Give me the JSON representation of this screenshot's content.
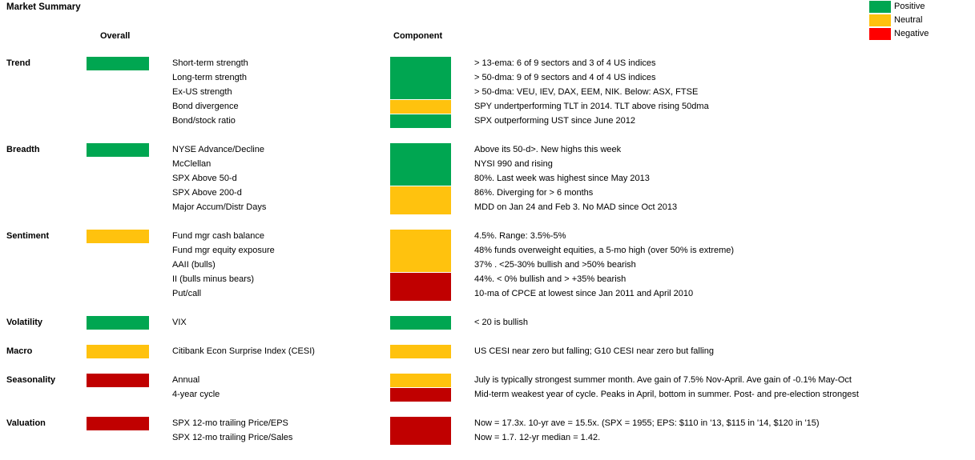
{
  "title": "Market Summary",
  "headers": {
    "overall": "Overall",
    "component": "Component"
  },
  "legend": [
    {
      "label": "Positive",
      "color": "#00A651"
    },
    {
      "label": "Neutral",
      "color": "#FFC20E"
    },
    {
      "label": "Negative",
      "color": "#FF0000"
    }
  ],
  "status_colors": {
    "positive": "#00A651",
    "neutral": "#FFC20E",
    "negative": "#C00000"
  },
  "categories": [
    {
      "name": "Trend",
      "overall": "positive",
      "rows": [
        {
          "label": "Short-term strength",
          "status": "positive",
          "detail": "> 13-ema: 6 of 9 sectors and 3 of 4 US indices"
        },
        {
          "label": "Long-term strength",
          "status": "positive",
          "detail": "> 50-dma: 9 of 9 sectors and 4 of 4 US indices"
        },
        {
          "label": "Ex-US strength",
          "status": "positive",
          "detail": "> 50-dma: VEU, IEV, DAX, EEM, NIK. Below: ASX, FTSE"
        },
        {
          "label": "Bond divergence",
          "status": "neutral",
          "detail": "SPY undertperforming TLT in 2014. TLT above rising 50dma"
        },
        {
          "label": "Bond/stock ratio",
          "status": "positive",
          "detail": "SPX outperforming UST since June 2012"
        }
      ]
    },
    {
      "name": "Breadth",
      "overall": "positive",
      "rows": [
        {
          "label": "NYSE Advance/Decline",
          "status": "positive",
          "detail": "Above its 50-d>. New highs this week"
        },
        {
          "label": "McClellan",
          "status": "positive",
          "detail": "NYSI 990 and rising"
        },
        {
          "label": "SPX Above 50-d",
          "status": "positive",
          "detail": "80%. Last week was highest since May 2013"
        },
        {
          "label": "SPX Above 200-d",
          "status": "neutral",
          "detail": "86%. Diverging for > 6 months"
        },
        {
          "label": "Major Accum/Distr Days",
          "status": "neutral",
          "detail": "MDD on Jan 24 and Feb 3. No MAD since Oct 2013"
        }
      ]
    },
    {
      "name": "Sentiment",
      "overall": "neutral",
      "rows": [
        {
          "label": "Fund mgr cash balance",
          "status": "neutral",
          "detail": "4.5%. Range: 3.5%-5%"
        },
        {
          "label": "Fund mgr equity exposure",
          "status": "neutral",
          "detail": "48% funds overweight equities, a 5-mo high (over 50% is extreme)"
        },
        {
          "label": "AAII (bulls)",
          "status": "neutral",
          "detail": "37% . <25-30% bullish and >50% bearish"
        },
        {
          "label": "II (bulls minus bears)",
          "status": "negative",
          "detail": "44%. < 0% bullish and > +35% bearish"
        },
        {
          "label": "Put/call",
          "status": "negative",
          "detail": "10-ma of CPCE at lowest since Jan 2011 and April 2010"
        }
      ]
    },
    {
      "name": "Volatility",
      "overall": "positive",
      "rows": [
        {
          "label": "VIX",
          "status": "positive",
          "detail": "< 20 is bullish"
        }
      ]
    },
    {
      "name": "Macro",
      "overall": "neutral",
      "rows": [
        {
          "label": "Citibank Econ Surprise Index (CESI)",
          "status": "neutral",
          "detail": "US CESI near zero but falling;  G10 CESI near zero but falling"
        }
      ]
    },
    {
      "name": "Seasonality",
      "overall": "negative",
      "rows": [
        {
          "label": "Annual",
          "status": "neutral",
          "detail": "July is typically strongest summer month. Ave gain of 7.5% Nov-April. Ave gain of -0.1% May-Oct"
        },
        {
          "label": "4-year cycle",
          "status": "negative",
          "detail": "Mid-term weakest year of cycle. Peaks in April, bottom in summer. Post- and pre-election strongest"
        }
      ]
    },
    {
      "name": "Valuation",
      "overall": "negative",
      "rows": [
        {
          "label": "SPX 12-mo trailing Price/EPS",
          "status": "negative",
          "detail": "Now = 17.3x. 10-yr ave = 15.5x.  (SPX = 1955; EPS: $110 in '13, $115 in '14, $120 in '15)"
        },
        {
          "label": "SPX 12-mo trailing Price/Sales",
          "status": "negative",
          "detail": "Now = 1.7. 12-yr median = 1.42."
        }
      ]
    }
  ]
}
